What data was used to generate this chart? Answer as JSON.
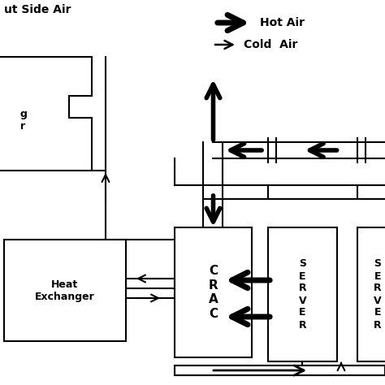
{
  "bg": "#ffffff",
  "lc": "#000000",
  "hot_air_label": "Hot Air",
  "cold_air_label": "Cold  Air",
  "outside_air_label": "ut Side Air",
  "crac_label": "C\nR\nA\nC",
  "server_label": "S\nE\nR\nV\nE\nR",
  "server_label2": "S\nE\nR\nV\nE\nR",
  "he_label": "Heat\nExchanger",
  "partial_label": "g\nr",
  "lw": 1.5
}
